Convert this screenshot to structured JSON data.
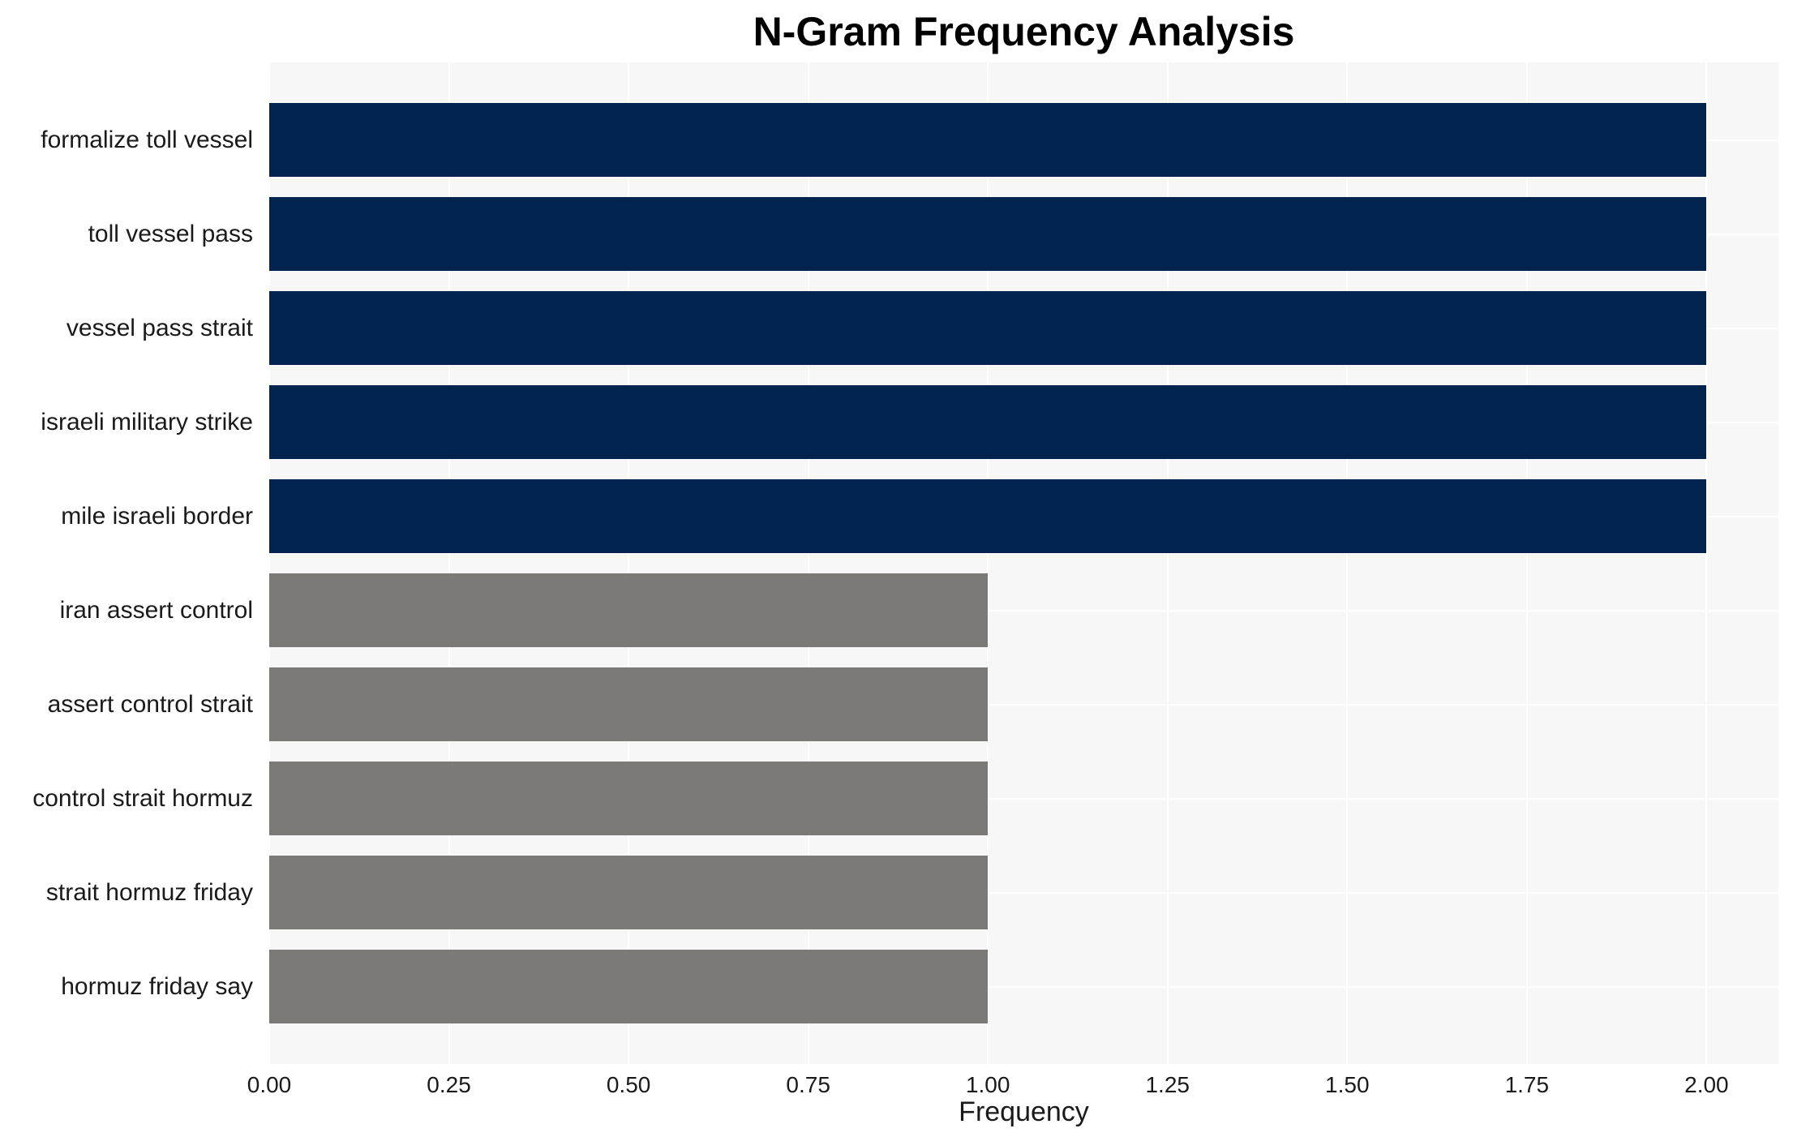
{
  "chart_data": {
    "type": "bar",
    "orientation": "horizontal",
    "title": "N-Gram Frequency Analysis",
    "xlabel": "Frequency",
    "ylabel": "",
    "categories": [
      "formalize toll vessel",
      "toll vessel pass",
      "vessel pass strait",
      "israeli military strike",
      "mile israeli border",
      "iran assert control",
      "assert control strait",
      "control strait hormuz",
      "strait hormuz friday",
      "hormuz friday say"
    ],
    "values": [
      2,
      2,
      2,
      2,
      2,
      1,
      1,
      1,
      1,
      1
    ],
    "bar_colors": [
      "#02234e",
      "#02234e",
      "#02234e",
      "#02234e",
      "#02234e",
      "#7b7a77",
      "#7b7a77",
      "#7b7a77",
      "#7b7a77",
      "#7b7a77"
    ],
    "xlim": [
      0,
      2.1
    ],
    "xticks": [
      {
        "value": 0.0,
        "label": "0.00"
      },
      {
        "value": 0.25,
        "label": "0.25"
      },
      {
        "value": 0.5,
        "label": "0.50"
      },
      {
        "value": 0.75,
        "label": "0.75"
      },
      {
        "value": 1.0,
        "label": "1.00"
      },
      {
        "value": 1.25,
        "label": "1.25"
      },
      {
        "value": 1.5,
        "label": "1.50"
      },
      {
        "value": 1.75,
        "label": "1.75"
      },
      {
        "value": 2.0,
        "label": "2.00"
      }
    ],
    "grid": true,
    "legend": false,
    "colors": {
      "bar_high": "#02234e",
      "bar_low": "#7b7a77",
      "plot_background": "#f7f7f7",
      "gridline": "#ffffff",
      "figure_background": "#ffffff",
      "title_text": "#000000",
      "tick_text": "#1a1a1a"
    }
  }
}
